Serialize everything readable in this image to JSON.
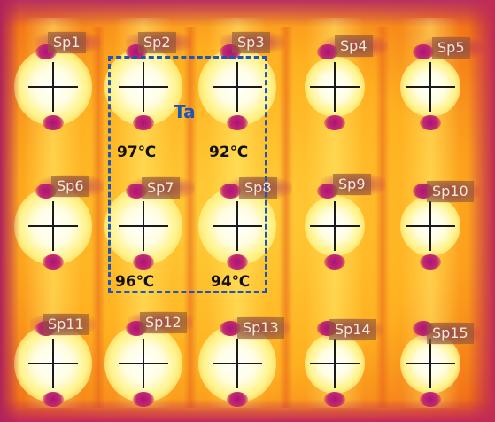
{
  "image": {
    "region_label": "Ta",
    "spot_labels": [
      "Sp1",
      "Sp2",
      "Sp3",
      "Sp4",
      "Sp5",
      "Sp6",
      "Sp7",
      "Sp8",
      "Sp9",
      "Sp10",
      "Sp11",
      "Sp12",
      "Sp13",
      "Sp14",
      "Sp15"
    ],
    "temperatures": [
      "97℃",
      "92℃",
      "96℃",
      "94℃"
    ],
    "colors": {
      "region_box": "#1c57b8",
      "hot_core": "#ffffff",
      "warm": "#ffb020",
      "edge": "#a51a3a",
      "spot_blob": "#a8127a",
      "crosshair": "#1a1a1a"
    },
    "grid": {
      "rows": 3,
      "columns": 5
    }
  }
}
